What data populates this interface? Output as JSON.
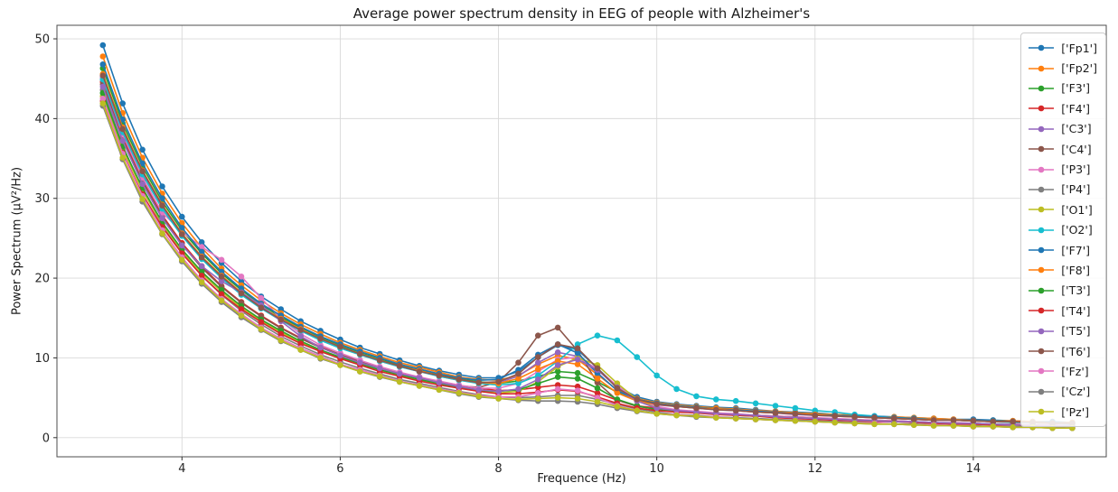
{
  "chart_data": {
    "type": "line",
    "title": "Average power spectrum density in EEG of people with Alzheimer's",
    "xlabel": "Frequence (Hz)",
    "ylabel": "Power Spectrum (μV²/Hz)",
    "grid": true,
    "legend_position": "upper right",
    "marker": "o",
    "xlim": [
      2.42,
      15.68
    ],
    "ylim": [
      -2.4,
      51.7
    ],
    "xticks": [
      4,
      6,
      8,
      10,
      12,
      14
    ],
    "yticks": [
      0,
      10,
      20,
      30,
      40,
      50
    ],
    "x": [
      3,
      3.25,
      3.5,
      3.75,
      4,
      4.25,
      4.5,
      4.75,
      5,
      5.25,
      5.5,
      5.75,
      6,
      6.25,
      6.5,
      6.75,
      7,
      7.25,
      7.5,
      7.75,
      8,
      8.25,
      8.5,
      8.75,
      9,
      9.25,
      9.5,
      9.75,
      10,
      10.25,
      10.5,
      10.75,
      11,
      11.25,
      11.5,
      11.75,
      12,
      12.25,
      12.5,
      12.75,
      13,
      13.25,
      13.5,
      13.75,
      14,
      14.25,
      14.5,
      14.75,
      15,
      15.25
    ],
    "series": [
      {
        "channel": "Fp1",
        "label": "['Fp1']",
        "color": "#1f77b4",
        "values": [
          49.2,
          41.9,
          36.1,
          31.5,
          27.7,
          24.5,
          21.9,
          19.6,
          17.7,
          16.1,
          14.6,
          13.4,
          12.3,
          11.3,
          10.5,
          9.7,
          9.0,
          8.4,
          7.9,
          7.5,
          7.5,
          8.3,
          10.1,
          11.6,
          11.0,
          8.7,
          6.4,
          5.1,
          4.5,
          4.2,
          4.0,
          3.8,
          3.7,
          3.5,
          3.3,
          3.2,
          3.1,
          2.9,
          2.8,
          2.7,
          2.6,
          2.5,
          2.4,
          2.3,
          2.3,
          2.2,
          2.1,
          2.0,
          2.0,
          1.9
        ]
      },
      {
        "channel": "Fp2",
        "label": "['Fp2']",
        "color": "#ff7f0e",
        "values": [
          47.8,
          40.7,
          35.1,
          30.6,
          26.9,
          23.8,
          21.2,
          19.1,
          17.2,
          15.6,
          14.2,
          13.0,
          11.9,
          11.0,
          10.2,
          9.4,
          8.8,
          8.2,
          7.6,
          7.3,
          7.2,
          7.8,
          9.2,
          10.3,
          9.8,
          7.9,
          6.0,
          4.9,
          4.4,
          4.1,
          3.9,
          3.7,
          3.6,
          3.4,
          3.3,
          3.1,
          3.0,
          2.9,
          2.8,
          2.6,
          2.6,
          2.5,
          2.4,
          2.3,
          2.2,
          2.1,
          2.1,
          2.0,
          1.9,
          1.9
        ]
      },
      {
        "channel": "F3",
        "label": "['F3']",
        "color": "#2ca02c",
        "values": [
          46.3,
          39.4,
          34.0,
          29.6,
          26.0,
          23.1,
          20.6,
          18.5,
          16.7,
          15.1,
          13.8,
          12.6,
          11.6,
          10.7,
          9.9,
          9.1,
          8.5,
          7.9,
          7.4,
          7.0,
          6.8,
          7.1,
          7.7,
          8.3,
          8.1,
          7.0,
          5.7,
          4.8,
          4.3,
          4.0,
          3.8,
          3.6,
          3.4,
          3.3,
          3.1,
          3.0,
          2.9,
          2.8,
          2.7,
          2.6,
          2.5,
          2.4,
          2.3,
          2.2,
          2.1,
          2.1,
          2.0,
          1.9,
          1.8,
          1.8
        ]
      },
      {
        "channel": "F4",
        "label": "['F4']",
        "color": "#d62728",
        "values": [
          44.6,
          37.7,
          32.3,
          27.9,
          24.4,
          21.5,
          19.0,
          17.0,
          15.3,
          13.8,
          12.5,
          11.4,
          10.4,
          9.6,
          8.8,
          8.1,
          7.6,
          7.0,
          6.5,
          6.2,
          5.9,
          6.0,
          6.3,
          6.6,
          6.4,
          5.6,
          4.7,
          4.0,
          3.7,
          3.4,
          3.2,
          3.1,
          2.9,
          2.8,
          2.7,
          2.6,
          2.5,
          2.3,
          2.2,
          2.2,
          2.1,
          2.0,
          1.9,
          1.8,
          1.8,
          1.7,
          1.7,
          1.6,
          1.5,
          1.5
        ]
      },
      {
        "channel": "C3",
        "label": "['C3']",
        "color": "#9467bd",
        "values": [
          45.2,
          38.5,
          33.2,
          28.9,
          25.4,
          22.5,
          20.1,
          18.0,
          16.3,
          14.8,
          13.4,
          12.3,
          11.3,
          10.4,
          9.6,
          8.9,
          8.3,
          7.7,
          7.2,
          6.9,
          6.9,
          7.7,
          9.4,
          10.7,
          10.2,
          8.1,
          5.9,
          4.7,
          4.1,
          3.9,
          3.7,
          3.5,
          3.4,
          3.2,
          3.1,
          2.9,
          2.8,
          2.7,
          2.6,
          2.5,
          2.4,
          2.3,
          2.2,
          2.2,
          2.1,
          2.0,
          1.9,
          1.9,
          1.8,
          1.8
        ]
      },
      {
        "channel": "C4",
        "label": "['C4']",
        "color": "#8c564b",
        "values": [
          44.3,
          37.4,
          32.1,
          27.7,
          24.2,
          21.3,
          18.9,
          16.9,
          15.2,
          13.7,
          12.4,
          11.3,
          10.4,
          9.5,
          8.8,
          8.1,
          7.5,
          7.0,
          6.5,
          6.3,
          7.0,
          9.4,
          12.8,
          13.8,
          10.9,
          6.9,
          4.7,
          3.9,
          3.6,
          3.4,
          3.2,
          3.1,
          2.9,
          2.8,
          2.7,
          2.5,
          2.4,
          2.3,
          2.2,
          2.1,
          2.1,
          2.0,
          1.9,
          1.8,
          1.8,
          1.7,
          1.6,
          1.6,
          1.5,
          1.5
        ]
      },
      {
        "channel": "P3",
        "label": "['P3']",
        "color": "#e377c2",
        "values": [
          45.0,
          38.0,
          32.6,
          28.2,
          25.8,
          23.9,
          22.3,
          20.2,
          17.5,
          14.9,
          13.0,
          11.6,
          10.6,
          9.7,
          8.9,
          8.2,
          7.6,
          7.1,
          6.6,
          6.2,
          6.2,
          6.8,
          8.3,
          9.8,
          10.1,
          8.6,
          6.5,
          4.8,
          3.9,
          3.5,
          3.3,
          3.1,
          3.0,
          2.8,
          2.7,
          2.6,
          2.5,
          2.4,
          2.3,
          2.2,
          2.1,
          2.0,
          1.9,
          1.9,
          1.8,
          1.7,
          1.7,
          1.6,
          1.6,
          1.5
        ]
      },
      {
        "channel": "P4",
        "label": "['P4']",
        "color": "#7f7f7f",
        "values": [
          43.6,
          36.6,
          31.1,
          26.7,
          23.2,
          20.3,
          17.9,
          15.9,
          14.2,
          12.7,
          11.5,
          10.4,
          9.5,
          8.7,
          8.0,
          7.3,
          6.8,
          6.3,
          5.8,
          5.4,
          5.1,
          5.0,
          5.1,
          5.3,
          5.3,
          4.8,
          4.2,
          3.6,
          3.2,
          2.9,
          2.8,
          2.6,
          2.5,
          2.4,
          2.3,
          2.2,
          2.1,
          2.0,
          1.9,
          1.8,
          1.7,
          1.7,
          1.6,
          1.5,
          1.5,
          1.4,
          1.4,
          1.3,
          1.3,
          1.2
        ]
      },
      {
        "channel": "O1",
        "label": "['O1']",
        "color": "#bcbd22",
        "values": [
          42.8,
          36.2,
          31.0,
          26.8,
          23.4,
          20.6,
          18.3,
          16.3,
          14.7,
          13.2,
          12.0,
          10.9,
          10.0,
          9.2,
          8.5,
          7.8,
          7.2,
          6.7,
          6.3,
          5.8,
          5.6,
          5.8,
          7.0,
          8.9,
          10.0,
          9.1,
          6.8,
          4.8,
          3.7,
          3.3,
          3.1,
          3.0,
          2.8,
          2.7,
          2.6,
          2.5,
          2.3,
          2.3,
          2.2,
          2.1,
          2.0,
          1.9,
          1.8,
          1.8,
          1.7,
          1.6,
          1.6,
          1.5,
          1.5,
          1.4
        ]
      },
      {
        "channel": "O2",
        "label": "['O2']",
        "color": "#17becf",
        "values": [
          44.9,
          38.3,
          33.0,
          28.7,
          25.3,
          22.4,
          20.0,
          17.9,
          16.2,
          14.7,
          13.4,
          12.2,
          11.2,
          10.4,
          9.6,
          8.9,
          8.3,
          7.7,
          7.2,
          6.8,
          6.6,
          6.8,
          7.8,
          9.6,
          11.7,
          12.8,
          12.2,
          10.1,
          7.8,
          6.1,
          5.2,
          4.8,
          4.6,
          4.3,
          4.0,
          3.7,
          3.4,
          3.2,
          2.9,
          2.7,
          2.5,
          2.4,
          2.3,
          2.2,
          2.1,
          2.0,
          1.9,
          1.9,
          1.8,
          1.7
        ]
      },
      {
        "channel": "F7",
        "label": "['F7']",
        "color": "#1f77b4",
        "values": [
          46.8,
          39.9,
          34.4,
          30.0,
          26.3,
          23.3,
          20.8,
          18.7,
          16.8,
          15.3,
          13.9,
          12.7,
          11.7,
          10.8,
          10.0,
          9.2,
          8.6,
          8.0,
          7.5,
          7.2,
          7.3,
          8.5,
          10.4,
          11.7,
          10.6,
          8.1,
          5.9,
          4.8,
          4.3,
          4.0,
          3.8,
          3.6,
          3.5,
          3.3,
          3.2,
          3.0,
          2.9,
          2.8,
          2.7,
          2.6,
          2.5,
          2.4,
          2.3,
          2.2,
          2.2,
          2.1,
          2.0,
          1.9,
          1.9,
          1.8
        ]
      },
      {
        "channel": "F8",
        "label": "['F8']",
        "color": "#ff7f0e",
        "values": [
          45.6,
          38.9,
          33.5,
          29.2,
          25.6,
          22.7,
          20.3,
          18.2,
          16.4,
          14.9,
          13.6,
          12.4,
          11.4,
          10.5,
          9.7,
          9.0,
          8.4,
          7.8,
          7.3,
          6.9,
          6.8,
          7.4,
          8.6,
          9.6,
          9.2,
          7.4,
          5.6,
          4.6,
          4.2,
          3.9,
          3.7,
          3.6,
          3.4,
          3.2,
          3.1,
          3.0,
          2.9,
          2.7,
          2.6,
          2.5,
          2.4,
          2.3,
          2.3,
          2.2,
          2.1,
          2.0,
          2.0,
          1.9,
          1.8,
          1.8
        ]
      },
      {
        "channel": "T3",
        "label": "['T3']",
        "color": "#2ca02c",
        "values": [
          43.2,
          36.5,
          31.3,
          27.0,
          23.6,
          20.8,
          18.5,
          16.5,
          14.8,
          13.4,
          12.1,
          11.0,
          10.1,
          9.3,
          8.5,
          7.9,
          7.3,
          6.8,
          6.3,
          5.9,
          5.8,
          6.0,
          6.8,
          7.6,
          7.4,
          6.2,
          4.8,
          4.0,
          3.5,
          3.3,
          3.1,
          3.0,
          2.8,
          2.7,
          2.6,
          2.5,
          2.4,
          2.3,
          2.2,
          2.1,
          2.0,
          1.9,
          1.9,
          1.8,
          1.7,
          1.7,
          1.6,
          1.5,
          1.5,
          1.4
        ]
      },
      {
        "channel": "T4",
        "label": "['T4']",
        "color": "#d62728",
        "values": [
          42.2,
          35.7,
          30.5,
          26.4,
          23.1,
          20.3,
          18.0,
          16.1,
          14.5,
          13.0,
          11.8,
          10.8,
          9.9,
          9.1,
          8.3,
          7.7,
          7.1,
          6.6,
          6.2,
          5.8,
          5.5,
          5.5,
          5.7,
          6.0,
          5.8,
          5.1,
          4.3,
          3.7,
          3.4,
          3.2,
          3.1,
          2.9,
          2.8,
          2.7,
          2.5,
          2.4,
          2.3,
          2.2,
          2.1,
          2.0,
          2.0,
          1.9,
          1.8,
          1.7,
          1.7,
          1.6,
          1.6,
          1.5,
          1.5,
          1.4
        ]
      },
      {
        "channel": "T5",
        "label": "['T5']",
        "color": "#9467bd",
        "values": [
          44.0,
          37.2,
          31.8,
          27.5,
          24.1,
          21.5,
          19.6,
          18.2,
          16.6,
          14.6,
          12.7,
          11.3,
          10.3,
          9.4,
          8.7,
          8.0,
          7.5,
          6.9,
          6.4,
          6.0,
          5.8,
          6.1,
          7.3,
          9.1,
          9.8,
          8.5,
          6.3,
          4.6,
          3.7,
          3.4,
          3.2,
          3.0,
          2.9,
          2.8,
          2.6,
          2.5,
          2.4,
          2.3,
          2.2,
          2.1,
          2.0,
          2.0,
          1.9,
          1.8,
          1.8,
          1.7,
          1.6,
          1.6,
          1.5,
          1.5
        ]
      },
      {
        "channel": "T6",
        "label": "['T6']",
        "color": "#8c564b",
        "values": [
          45.4,
          38.7,
          33.4,
          29.1,
          25.5,
          22.6,
          20.2,
          18.1,
          16.3,
          14.8,
          13.5,
          12.4,
          11.4,
          10.5,
          9.7,
          9.0,
          8.3,
          7.8,
          7.3,
          6.9,
          7.0,
          8.0,
          10.1,
          11.7,
          11.2,
          8.7,
          6.2,
          4.8,
          4.2,
          3.9,
          3.7,
          3.5,
          3.4,
          3.2,
          3.1,
          3.0,
          2.8,
          2.7,
          2.6,
          2.5,
          2.4,
          2.3,
          2.2,
          2.2,
          2.1,
          2.0,
          2.0,
          1.9,
          1.8,
          1.8
        ]
      },
      {
        "channel": "Fz",
        "label": "['Fz']",
        "color": "#e377c2",
        "values": [
          42.5,
          35.6,
          30.3,
          26.0,
          22.6,
          19.7,
          17.4,
          15.5,
          13.8,
          12.4,
          11.2,
          10.2,
          9.2,
          8.5,
          7.8,
          7.1,
          6.6,
          6.1,
          5.7,
          5.3,
          5.1,
          5.1,
          5.6,
          6.1,
          5.9,
          5.0,
          4.0,
          3.4,
          3.0,
          2.9,
          2.7,
          2.6,
          2.4,
          2.3,
          2.2,
          2.1,
          2.0,
          1.9,
          1.8,
          1.8,
          1.7,
          1.6,
          1.6,
          1.5,
          1.4,
          1.4,
          1.3,
          1.3,
          1.2,
          1.2
        ]
      },
      {
        "channel": "Cz",
        "label": "['Cz']",
        "color": "#7f7f7f",
        "values": [
          41.6,
          34.9,
          29.6,
          25.5,
          22.1,
          19.3,
          17.0,
          15.1,
          13.5,
          12.1,
          11.0,
          9.9,
          9.1,
          8.3,
          7.6,
          7.0,
          6.5,
          6.0,
          5.5,
          5.1,
          4.9,
          4.7,
          4.6,
          4.6,
          4.5,
          4.2,
          3.7,
          3.3,
          3.0,
          2.8,
          2.6,
          2.5,
          2.4,
          2.3,
          2.2,
          2.1,
          2.0,
          1.9,
          1.8,
          1.7,
          1.7,
          1.6,
          1.5,
          1.5,
          1.4,
          1.4,
          1.3,
          1.3,
          1.2,
          1.2
        ]
      },
      {
        "channel": "Pz",
        "label": "['Pz']",
        "color": "#bcbd22",
        "values": [
          41.9,
          35.1,
          29.9,
          25.6,
          22.3,
          19.5,
          17.2,
          15.3,
          13.6,
          12.2,
          11.0,
          10.0,
          9.1,
          8.3,
          7.7,
          7.0,
          6.5,
          6.0,
          5.6,
          5.2,
          4.9,
          4.8,
          4.9,
          5.0,
          4.9,
          4.5,
          3.9,
          3.4,
          3.0,
          2.8,
          2.7,
          2.5,
          2.4,
          2.3,
          2.2,
          2.1,
          2.0,
          1.9,
          1.8,
          1.7,
          1.7,
          1.6,
          1.5,
          1.5,
          1.4,
          1.4,
          1.3,
          1.3,
          1.2,
          1.2
        ]
      }
    ]
  }
}
